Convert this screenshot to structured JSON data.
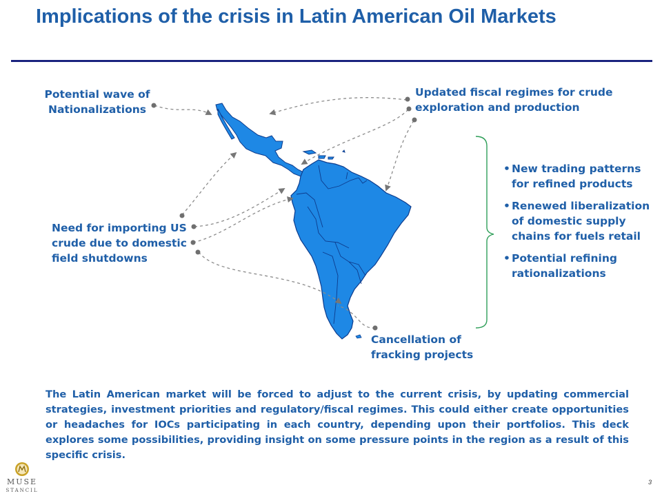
{
  "title": "Implications of the crisis in Latin American Oil Markets",
  "callouts": {
    "nationalizations": "Potential wave of Nationalizations",
    "fiscal": "Updated fiscal regimes for crude exploration and production",
    "importing": "Need for importing US crude due to domestic field shutdowns",
    "fracking": "Cancellation of fracking projects"
  },
  "bullets": [
    "New trading patterns for refined products",
    "Renewed liberalization of domestic supply chains for fuels retail",
    "Potential refining rationalizations"
  ],
  "summary": "The Latin American market will be forced to adjust to the current crisis, by updating commercial strategies, investment priorities and regulatory/fiscal regimes. This could either create opportunities or headaches for IOCs participating in each country, depending upon their portfolios. This deck explores some possibilities, providing insight on some pressure points in the region as a result of this specific crisis.",
  "logo": {
    "line1": "MUSE",
    "line2": "STANCIL"
  },
  "page_number": "3",
  "colors": {
    "title": "#1f5fa8",
    "text": "#1f5fa8",
    "map_fill": "#1e88e5",
    "map_stroke": "#0d3b8c",
    "rule": "#1a237e",
    "connector": "#8a8a8a",
    "bracket": "#2e9e58"
  }
}
